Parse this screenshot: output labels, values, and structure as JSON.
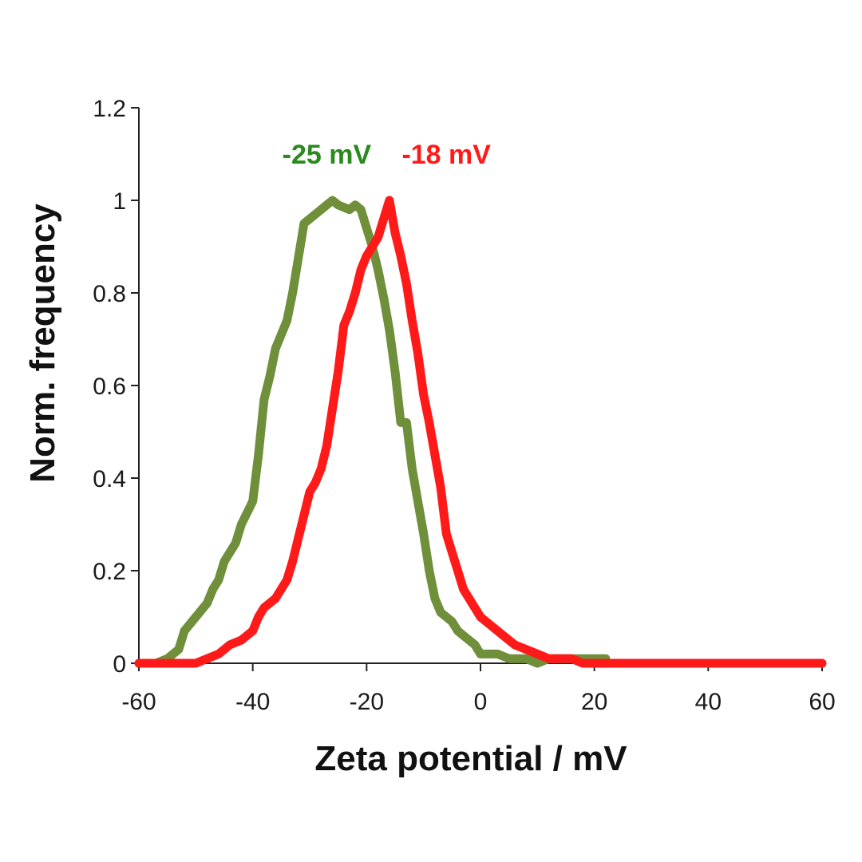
{
  "chart_data": {
    "type": "line",
    "xlabel": "Zeta potential / mV",
    "ylabel": "Norm. frequency",
    "xlim": [
      -60,
      60
    ],
    "ylim": [
      0,
      1.2
    ],
    "xticks": [
      -60,
      -40,
      -20,
      0,
      20,
      40,
      60
    ],
    "yticks": [
      0,
      0.2,
      0.4,
      0.6,
      0.8,
      1,
      1.2
    ],
    "xtick_labels": [
      "-60",
      "-40",
      "-20",
      "0",
      "20",
      "40",
      "60"
    ],
    "ytick_labels": [
      "0",
      "0.2",
      "0.4",
      "0.6",
      "0.8",
      "1",
      "1.2"
    ],
    "grid": false,
    "series": [
      {
        "color": "#6f8f3a",
        "x": [
          -60,
          -57,
          -55,
          -53,
          -52,
          -50,
          -48,
          -47,
          -46,
          -45,
          -43,
          -42,
          -40,
          -39,
          -38,
          -37,
          -36,
          -34,
          -33,
          -31,
          -30,
          -28,
          -26,
          -25,
          -23,
          -22,
          -21,
          -20,
          -19,
          -18,
          -17,
          -16,
          -15,
          -14,
          -13,
          -12,
          -11,
          -10,
          -9,
          -8,
          -7,
          -6,
          -5,
          -4,
          -3,
          -2,
          -1,
          0,
          1,
          3,
          5,
          8,
          10,
          12,
          15,
          18,
          20,
          22
        ],
        "y": [
          0,
          0,
          0.01,
          0.03,
          0.07,
          0.1,
          0.13,
          0.16,
          0.18,
          0.22,
          0.26,
          0.3,
          0.35,
          0.45,
          0.57,
          0.62,
          0.68,
          0.74,
          0.8,
          0.95,
          0.96,
          0.98,
          1.0,
          0.99,
          0.98,
          0.99,
          0.98,
          0.94,
          0.9,
          0.85,
          0.79,
          0.72,
          0.63,
          0.52,
          0.52,
          0.42,
          0.35,
          0.28,
          0.2,
          0.14,
          0.11,
          0.1,
          0.09,
          0.07,
          0.06,
          0.05,
          0.04,
          0.02,
          0.02,
          0.02,
          0.01,
          0.01,
          0,
          0.01,
          0.01,
          0.01,
          0.01,
          0.01
        ]
      },
      {
        "color": "#ff1a1a",
        "x": [
          -60,
          -55,
          -52,
          -50,
          -48,
          -46,
          -45,
          -44,
          -42,
          -40,
          -39,
          -38,
          -36,
          -34,
          -33,
          -32,
          -31,
          -30,
          -29,
          -28,
          -27,
          -26,
          -25,
          -24,
          -23,
          -22,
          -21,
          -20,
          -19,
          -18,
          -17,
          -16,
          -15,
          -14,
          -13,
          -12,
          -11,
          -10,
          -9,
          -8,
          -7,
          -6,
          -5,
          -4,
          -3,
          -2,
          -1,
          0,
          1,
          2,
          3,
          4,
          5,
          6,
          8,
          10,
          12,
          14,
          16,
          18,
          20,
          22,
          25,
          30,
          35,
          40,
          50,
          60
        ],
        "y": [
          0,
          0,
          0,
          0,
          0.01,
          0.02,
          0.03,
          0.04,
          0.05,
          0.07,
          0.1,
          0.12,
          0.14,
          0.18,
          0.22,
          0.27,
          0.32,
          0.37,
          0.39,
          0.42,
          0.47,
          0.55,
          0.63,
          0.73,
          0.76,
          0.8,
          0.85,
          0.88,
          0.9,
          0.92,
          0.96,
          1.0,
          0.93,
          0.88,
          0.82,
          0.74,
          0.67,
          0.58,
          0.52,
          0.45,
          0.38,
          0.28,
          0.24,
          0.2,
          0.16,
          0.14,
          0.12,
          0.1,
          0.09,
          0.08,
          0.07,
          0.06,
          0.05,
          0.04,
          0.03,
          0.02,
          0.01,
          0.01,
          0.01,
          0,
          0,
          0,
          0,
          0,
          0,
          0,
          0,
          0
        ]
      }
    ],
    "annotations": [
      {
        "text": "-25 mV",
        "color": "#2a8a1e",
        "x": -27,
        "y": 1.1
      },
      {
        "text": "-18 mV",
        "color": "#ff1a1a",
        "x": -6,
        "y": 1.1
      }
    ]
  }
}
